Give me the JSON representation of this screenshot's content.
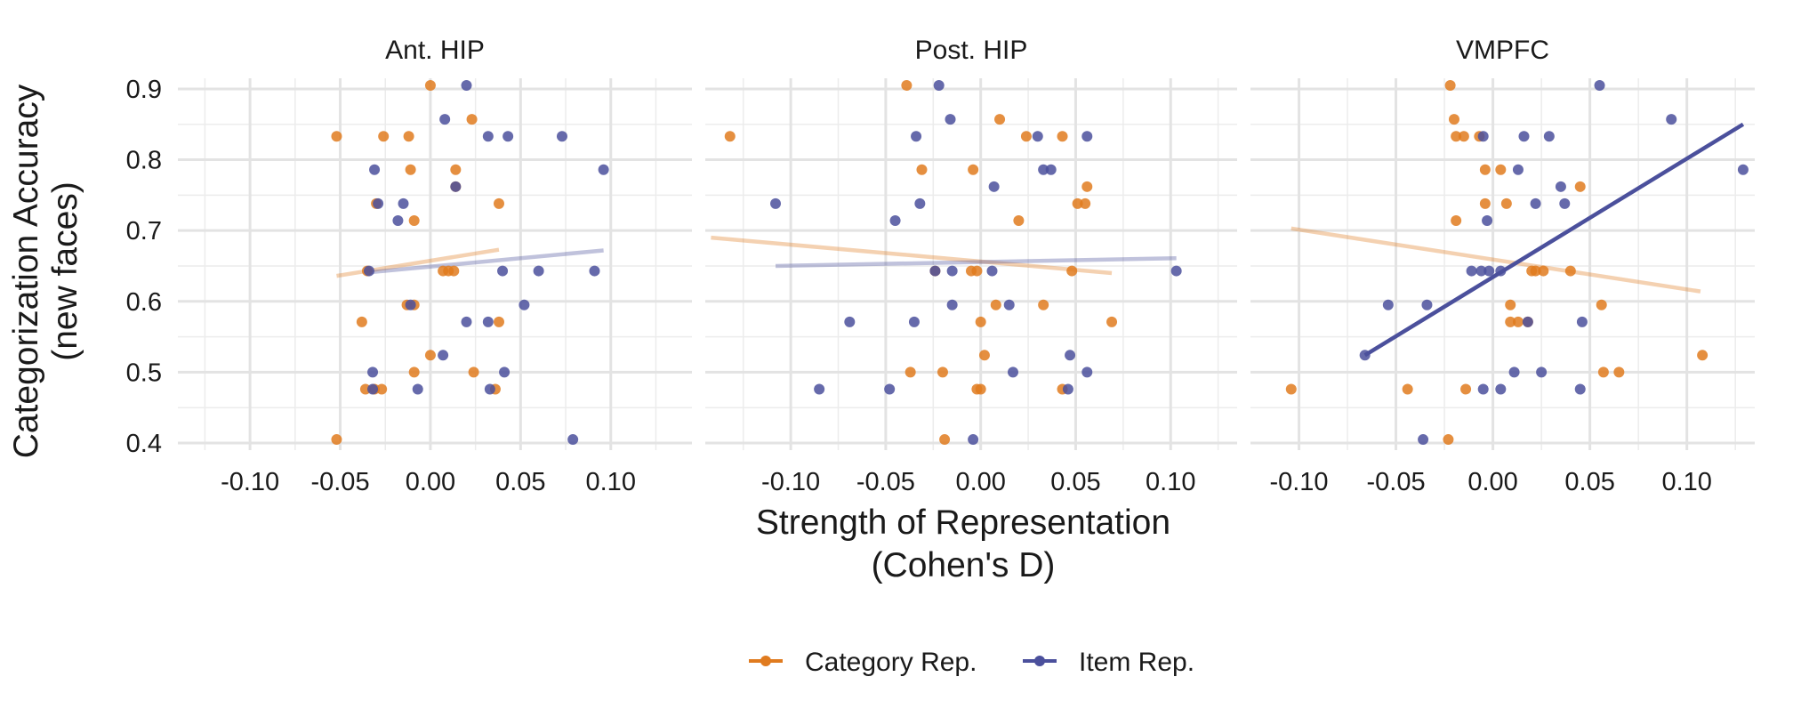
{
  "figure": {
    "xlabel_line1": "Strength of Representation",
    "xlabel_line2": "(Cohen's D)",
    "ylabel_line1": "Categorization Accuracy",
    "ylabel_line2": "(new faces)"
  },
  "legend": {
    "position": "bottom",
    "items": [
      {
        "label": "Category Rep.",
        "color": "#e07b1f"
      },
      {
        "label": "Item Rep.",
        "color": "#4b509c"
      }
    ]
  },
  "chart_data": [
    {
      "type": "scatter",
      "title": "Ant. HIP",
      "xlim": [
        -0.14,
        0.145
      ],
      "ylim": [
        0.39,
        0.915
      ],
      "xticks": [
        -0.1,
        -0.05,
        0.0,
        0.05,
        0.1
      ],
      "xtick_labels": [
        "-0.10",
        "-0.05",
        "0.00",
        "0.05",
        "0.10"
      ],
      "yticks": [
        0.4,
        0.5,
        0.6,
        0.7,
        0.8,
        0.9
      ],
      "ytick_labels": [
        "0.4",
        "0.5",
        "0.6",
        "0.7",
        "0.8",
        "0.9"
      ],
      "grid": true,
      "series": [
        {
          "name": "Category Rep.",
          "color": "#e07b1f",
          "points": [
            [
              0.0,
              0.905
            ],
            [
              -0.052,
              0.833
            ],
            [
              -0.026,
              0.833
            ],
            [
              -0.012,
              0.833
            ],
            [
              0.023,
              0.857
            ],
            [
              -0.011,
              0.786
            ],
            [
              0.014,
              0.786
            ],
            [
              0.014,
              0.762
            ],
            [
              -0.03,
              0.738
            ],
            [
              -0.009,
              0.714
            ],
            [
              0.038,
              0.738
            ],
            [
              0.007,
              0.643
            ],
            [
              0.01,
              0.643
            ],
            [
              0.013,
              0.643
            ],
            [
              -0.035,
              0.643
            ],
            [
              -0.013,
              0.595
            ],
            [
              -0.009,
              0.595
            ],
            [
              -0.038,
              0.571
            ],
            [
              0.038,
              0.571
            ],
            [
              0.0,
              0.524
            ],
            [
              -0.009,
              0.5
            ],
            [
              0.024,
              0.5
            ],
            [
              -0.036,
              0.476
            ],
            [
              -0.031,
              0.476
            ],
            [
              -0.027,
              0.476
            ],
            [
              0.036,
              0.476
            ],
            [
              -0.052,
              0.405
            ]
          ],
          "fit": {
            "x": [
              -0.052,
              0.038
            ],
            "y": [
              0.636,
              0.673
            ],
            "opacity": 0.35
          }
        },
        {
          "name": "Item Rep.",
          "color": "#4b509c",
          "points": [
            [
              0.02,
              0.905
            ],
            [
              0.008,
              0.857
            ],
            [
              0.032,
              0.833
            ],
            [
              0.043,
              0.833
            ],
            [
              0.073,
              0.833
            ],
            [
              -0.031,
              0.786
            ],
            [
              0.096,
              0.786
            ],
            [
              0.014,
              0.762
            ],
            [
              -0.029,
              0.738
            ],
            [
              -0.015,
              0.738
            ],
            [
              -0.018,
              0.714
            ],
            [
              -0.034,
              0.643
            ],
            [
              0.04,
              0.643
            ],
            [
              0.06,
              0.643
            ],
            [
              0.091,
              0.643
            ],
            [
              -0.011,
              0.595
            ],
            [
              0.052,
              0.595
            ],
            [
              0.02,
              0.571
            ],
            [
              0.032,
              0.571
            ],
            [
              -0.032,
              0.5
            ],
            [
              0.007,
              0.524
            ],
            [
              0.041,
              0.5
            ],
            [
              -0.007,
              0.476
            ],
            [
              -0.032,
              0.476
            ],
            [
              0.033,
              0.476
            ],
            [
              0.079,
              0.405
            ]
          ],
          "fit": {
            "x": [
              -0.034,
              0.096
            ],
            "y": [
              0.641,
              0.672
            ],
            "opacity": 0.35
          }
        }
      ]
    },
    {
      "type": "scatter",
      "title": "Post. HIP",
      "xlim": [
        -0.145,
        0.135
      ],
      "ylim": [
        0.39,
        0.915
      ],
      "xticks": [
        -0.1,
        -0.05,
        0.0,
        0.05,
        0.1
      ],
      "xtick_labels": [
        "-0.10",
        "-0.05",
        "0.00",
        "0.05",
        "0.10"
      ],
      "yticks": [
        0.4,
        0.5,
        0.6,
        0.7,
        0.8,
        0.9
      ],
      "ytick_labels": [
        "0.4",
        "0.5",
        "0.6",
        "0.7",
        "0.8",
        "0.9"
      ],
      "grid": true,
      "series": [
        {
          "name": "Category Rep.",
          "color": "#e07b1f",
          "points": [
            [
              -0.039,
              0.905
            ],
            [
              0.01,
              0.857
            ],
            [
              -0.132,
              0.833
            ],
            [
              0.024,
              0.833
            ],
            [
              0.043,
              0.833
            ],
            [
              -0.031,
              0.786
            ],
            [
              -0.004,
              0.786
            ],
            [
              0.056,
              0.762
            ],
            [
              0.02,
              0.714
            ],
            [
              0.051,
              0.738
            ],
            [
              0.055,
              0.738
            ],
            [
              -0.024,
              0.643
            ],
            [
              -0.005,
              0.643
            ],
            [
              -0.002,
              0.643
            ],
            [
              0.048,
              0.643
            ],
            [
              0.008,
              0.595
            ],
            [
              0.033,
              0.595
            ],
            [
              0.0,
              0.571
            ],
            [
              0.069,
              0.571
            ],
            [
              0.002,
              0.524
            ],
            [
              -0.037,
              0.5
            ],
            [
              -0.02,
              0.5
            ],
            [
              -0.002,
              0.476
            ],
            [
              0.0,
              0.476
            ],
            [
              0.043,
              0.476
            ],
            [
              -0.019,
              0.405
            ]
          ],
          "fit": {
            "x": [
              -0.142,
              0.069
            ],
            "y": [
              0.69,
              0.64
            ],
            "opacity": 0.35
          }
        },
        {
          "name": "Item Rep.",
          "color": "#4b509c",
          "points": [
            [
              -0.022,
              0.905
            ],
            [
              -0.016,
              0.857
            ],
            [
              -0.034,
              0.833
            ],
            [
              0.03,
              0.833
            ],
            [
              0.056,
              0.833
            ],
            [
              0.033,
              0.786
            ],
            [
              0.037,
              0.786
            ],
            [
              0.007,
              0.762
            ],
            [
              -0.108,
              0.738
            ],
            [
              -0.032,
              0.738
            ],
            [
              -0.045,
              0.714
            ],
            [
              -0.024,
              0.643
            ],
            [
              -0.015,
              0.643
            ],
            [
              0.006,
              0.643
            ],
            [
              0.103,
              0.643
            ],
            [
              -0.015,
              0.595
            ],
            [
              0.015,
              0.595
            ],
            [
              -0.069,
              0.571
            ],
            [
              -0.035,
              0.571
            ],
            [
              0.047,
              0.524
            ],
            [
              0.017,
              0.5
            ],
            [
              0.056,
              0.5
            ],
            [
              -0.085,
              0.476
            ],
            [
              -0.048,
              0.476
            ],
            [
              0.046,
              0.476
            ],
            [
              -0.004,
              0.405
            ]
          ],
          "fit": {
            "x": [
              -0.108,
              0.103
            ],
            "y": [
              0.65,
              0.661
            ],
            "opacity": 0.35
          }
        }
      ]
    },
    {
      "type": "scatter",
      "title": "VMPFC",
      "xlim": [
        -0.125,
        0.135
      ],
      "ylim": [
        0.39,
        0.915
      ],
      "xticks": [
        -0.1,
        -0.05,
        0.0,
        0.05,
        0.1
      ],
      "xtick_labels": [
        "-0.10",
        "-0.05",
        "0.00",
        "0.05",
        "0.10"
      ],
      "yticks": [
        0.4,
        0.5,
        0.6,
        0.7,
        0.8,
        0.9
      ],
      "ytick_labels": [
        "0.4",
        "0.5",
        "0.6",
        "0.7",
        "0.8",
        "0.9"
      ],
      "grid": true,
      "series": [
        {
          "name": "Category Rep.",
          "color": "#e07b1f",
          "points": [
            [
              -0.022,
              0.905
            ],
            [
              -0.02,
              0.857
            ],
            [
              -0.019,
              0.833
            ],
            [
              -0.015,
              0.833
            ],
            [
              -0.007,
              0.833
            ],
            [
              -0.004,
              0.786
            ],
            [
              0.004,
              0.786
            ],
            [
              -0.019,
              0.714
            ],
            [
              -0.004,
              0.738
            ],
            [
              0.007,
              0.738
            ],
            [
              0.045,
              0.762
            ],
            [
              0.02,
              0.643
            ],
            [
              0.022,
              0.643
            ],
            [
              0.026,
              0.643
            ],
            [
              0.04,
              0.643
            ],
            [
              0.009,
              0.595
            ],
            [
              0.056,
              0.595
            ],
            [
              0.009,
              0.571
            ],
            [
              0.013,
              0.571
            ],
            [
              0.018,
              0.571
            ],
            [
              0.108,
              0.524
            ],
            [
              0.057,
              0.5
            ],
            [
              0.065,
              0.5
            ],
            [
              -0.104,
              0.476
            ],
            [
              -0.044,
              0.476
            ],
            [
              -0.014,
              0.476
            ],
            [
              -0.023,
              0.405
            ]
          ],
          "fit": {
            "x": [
              -0.104,
              0.107
            ],
            "y": [
              0.703,
              0.614
            ],
            "opacity": 0.35
          }
        },
        {
          "name": "Item Rep.",
          "color": "#4b509c",
          "points": [
            [
              0.055,
              0.905
            ],
            [
              0.092,
              0.857
            ],
            [
              -0.005,
              0.833
            ],
            [
              0.016,
              0.833
            ],
            [
              0.029,
              0.833
            ],
            [
              0.013,
              0.786
            ],
            [
              0.129,
              0.786
            ],
            [
              0.035,
              0.762
            ],
            [
              -0.003,
              0.714
            ],
            [
              0.022,
              0.738
            ],
            [
              0.037,
              0.738
            ],
            [
              -0.011,
              0.643
            ],
            [
              -0.006,
              0.643
            ],
            [
              -0.002,
              0.643
            ],
            [
              0.004,
              0.643
            ],
            [
              -0.054,
              0.595
            ],
            [
              -0.034,
              0.595
            ],
            [
              0.018,
              0.571
            ],
            [
              0.046,
              0.571
            ],
            [
              -0.066,
              0.524
            ],
            [
              0.011,
              0.5
            ],
            [
              0.025,
              0.5
            ],
            [
              -0.005,
              0.476
            ],
            [
              0.004,
              0.476
            ],
            [
              0.045,
              0.476
            ],
            [
              -0.036,
              0.405
            ]
          ],
          "fit": {
            "x": [
              -0.066,
              0.129
            ],
            "y": [
              0.524,
              0.85
            ],
            "opacity": 1
          }
        }
      ]
    }
  ]
}
